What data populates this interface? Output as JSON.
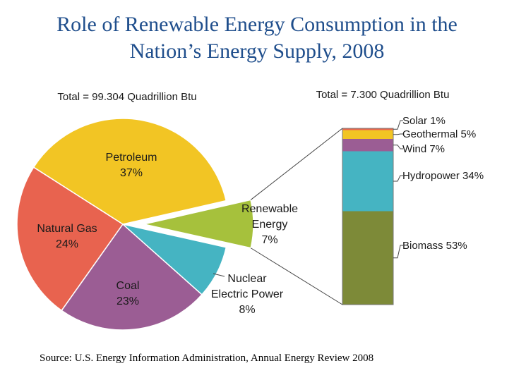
{
  "title_line1": "Role of Renewable Energy Consumption in the",
  "title_line2": "Nation’s Energy Supply, 2008",
  "source": "Source: U.S. Energy Information Administration, Annual Energy Review 2008",
  "chart_data": {
    "type": "pie",
    "title": "Role of Renewable Energy Consumption in the Nation’s Energy Supply, 2008",
    "pie": {
      "total_label": "Total = 99.304 Quadrillion Btu",
      "slices": [
        {
          "name": "Petroleum",
          "label_line1": "Petroleum",
          "value": 37,
          "value_label": "37%",
          "color": "#f2c524"
        },
        {
          "name": "Natural Gas",
          "label_line1": "Natural Gas",
          "value": 24,
          "value_label": "24%",
          "color": "#e8634f"
        },
        {
          "name": "Coal",
          "label_line1": "Coal",
          "value": 23,
          "value_label": "23%",
          "color": "#9b5d94"
        },
        {
          "name": "Nuclear Electric Power",
          "label_line1": "Nuclear",
          "label_line2": "Electric Power",
          "value": 8,
          "value_label": "8%",
          "color": "#45b4c2"
        },
        {
          "name": "Renewable Energy",
          "label_line1": "Renewable",
          "label_line2": "Energy",
          "value": 7,
          "value_label": "7%",
          "color": "#a6c13c"
        }
      ]
    },
    "stacked_bar": {
      "total_label": "Total = 7.300 Quadrillion Btu",
      "segments": [
        {
          "name": "Biomass",
          "value": 53,
          "label": "Biomass 53%",
          "color": "#7d8a38"
        },
        {
          "name": "Hydropower",
          "value": 34,
          "label": "Hydropower 34%",
          "color": "#45b4c2"
        },
        {
          "name": "Wind",
          "value": 7,
          "label": "Wind 7%",
          "color": "#9b5d94"
        },
        {
          "name": "Geothermal",
          "value": 5,
          "label": "Geothermal 5%",
          "color": "#f2c524"
        },
        {
          "name": "Solar",
          "value": 1,
          "label": "Solar 1%",
          "color": "#e8634f"
        }
      ]
    }
  }
}
